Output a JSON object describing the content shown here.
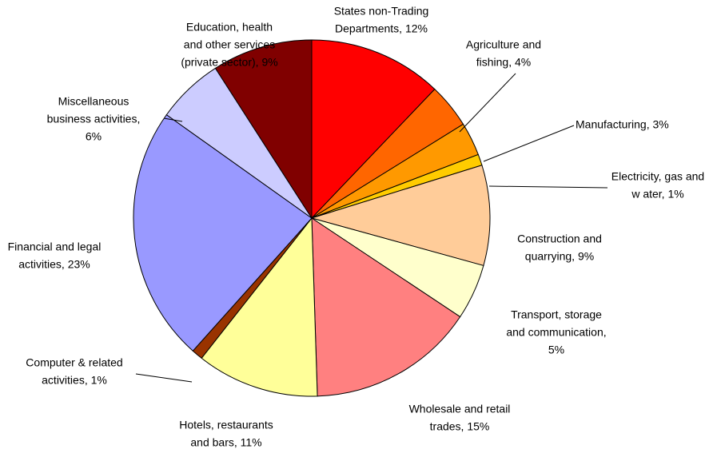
{
  "chart_data": {
    "type": "pie",
    "categories": [
      [
        "States non-Trading",
        "Departments, 12%"
      ],
      [
        "Agriculture and",
        "fishing, 4%"
      ],
      [
        "Manufacturing, 3%"
      ],
      [
        "Electricity, gas and",
        "w ater, 1%"
      ],
      [
        "Construction and",
        "quarrying, 9%"
      ],
      [
        "Transport, storage",
        "and communication,",
        "5%"
      ],
      [
        "Wholesale and retail",
        "trades, 15%"
      ],
      [
        "Hotels, restaurants",
        "and bars, 11%"
      ],
      [
        "Computer & related",
        "activities, 1%"
      ],
      [
        "Financial and legal",
        "activities, 23%"
      ],
      [
        "Miscellaneous",
        "business activities,",
        "6%"
      ],
      [
        "Education, health",
        "and other services",
        "(private sector), 9%"
      ]
    ],
    "values": [
      12,
      4,
      3,
      1,
      9,
      5,
      15,
      11,
      1,
      23,
      6,
      9
    ],
    "colors": [
      "#ff0000",
      "#ff6600",
      "#ff9900",
      "#ffcc00",
      "#ffcc99",
      "#ffffcc",
      "#ff8080",
      "#ffff99",
      "#993300",
      "#9999ff",
      "#ccccff",
      "#800000"
    ]
  }
}
